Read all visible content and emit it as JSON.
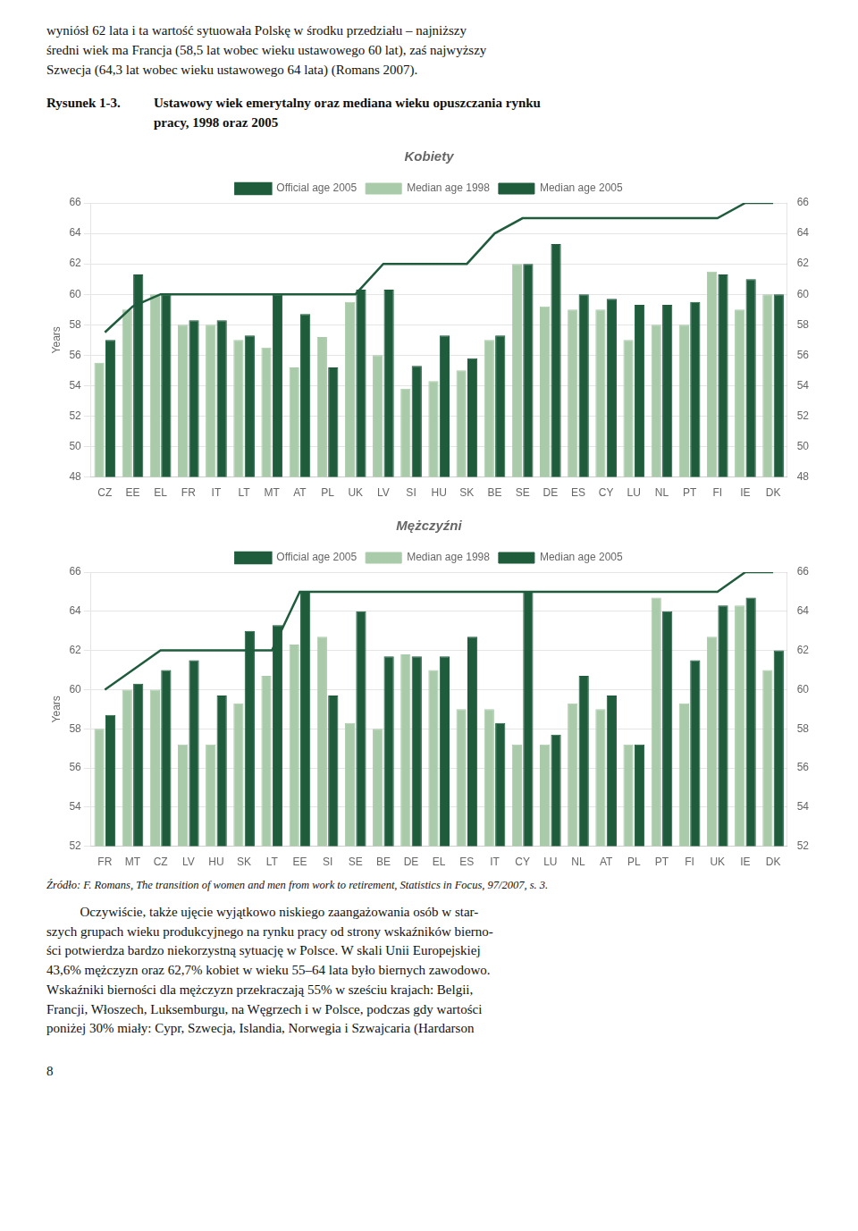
{
  "top_text": [
    "wyniósł 62 lata i ta wartość sytuowała Polskę w środku przedziału – najniższy",
    "średni wiek ma Francja (58,5 lat wobec wieku ustawowego 60 lat), zaś najwyższy",
    "Szwecja (64,3 lat wobec wieku ustawowego 64 lata) (Romans 2007)."
  ],
  "figure_label": "Rysunek 1-3.",
  "figure_title": [
    "Ustawowy wiek emerytalny oraz mediana wieku opuszczania rynku",
    "pracy, 1998 oraz 2005"
  ],
  "chart_data": [
    {
      "type": "bar",
      "title": "Kobiety",
      "ylabel": "Years",
      "categories": [
        "CZ",
        "EE",
        "EL",
        "FR",
        "IT",
        "LT",
        "MT",
        "AT",
        "PL",
        "UK",
        "LV",
        "SI",
        "HU",
        "SK",
        "BE",
        "SE",
        "DE",
        "ES",
        "CY",
        "LU",
        "NL",
        "PT",
        "FI",
        "IE",
        "DK"
      ],
      "series": [
        {
          "name": "Median age 1998",
          "color": "#aacbaa",
          "values": [
            55.5,
            59.0,
            60.0,
            58.0,
            58.0,
            57.0,
            56.5,
            55.2,
            57.2,
            59.5,
            56.0,
            53.8,
            54.3,
            55.0,
            57.0,
            62.0,
            59.2,
            59.0,
            59.0,
            57.0,
            58.0,
            58.0,
            61.5,
            59.0,
            60.0
          ]
        },
        {
          "name": "Median age 2005",
          "color": "#1e5c3c",
          "values": [
            57.0,
            61.3,
            60.0,
            58.3,
            58.3,
            57.3,
            60.0,
            58.7,
            55.2,
            60.3,
            60.3,
            55.3,
            57.3,
            55.8,
            57.3,
            62.0,
            63.3,
            60.0,
            59.7,
            59.3,
            59.3,
            59.5,
            61.3,
            61.0,
            60.0
          ]
        },
        {
          "name": "Official age 2005",
          "type": "line",
          "color": "#1e5c3c",
          "values": [
            57.5,
            59.2,
            60.0,
            60.0,
            60.0,
            60.0,
            60.0,
            60.0,
            60.0,
            60.0,
            62.0,
            62.0,
            62.0,
            62.0,
            64.0,
            65.0,
            65.0,
            65.0,
            65.0,
            65.0,
            65.0,
            65.0,
            65.0,
            66.0,
            66.0
          ]
        }
      ],
      "ylim": [
        48,
        66
      ],
      "yticks": [
        48,
        50,
        52,
        54,
        56,
        58,
        60,
        62,
        64,
        66
      ],
      "y2lim": [
        48,
        66
      ],
      "y2ticks": [
        48,
        50,
        52,
        54,
        56,
        58,
        60,
        62,
        64,
        66
      ],
      "grid": true,
      "legend": "top"
    },
    {
      "type": "bar",
      "title": "Mężczyźni",
      "ylabel": "Years",
      "categories": [
        "FR",
        "MT",
        "CZ",
        "LV",
        "HU",
        "SK",
        "LT",
        "EE",
        "SI",
        "SE",
        "BE",
        "DE",
        "EL",
        "ES",
        "IT",
        "CY",
        "LU",
        "NL",
        "AT",
        "PL",
        "PT",
        "FI",
        "UK",
        "IE",
        "DK"
      ],
      "series": [
        {
          "name": "Median age 1998",
          "color": "#aacbaa",
          "values": [
            58.0,
            60.0,
            60.0,
            57.2,
            57.2,
            59.3,
            60.7,
            62.3,
            62.7,
            58.3,
            58.0,
            61.8,
            61.0,
            59.0,
            59.0,
            57.2,
            57.2,
            59.3,
            59.0,
            57.2,
            64.7,
            59.3,
            62.7,
            64.3,
            61.0
          ]
        },
        {
          "name": "Median age 2005",
          "color": "#1e5c3c",
          "values": [
            58.7,
            60.3,
            61.0,
            61.5,
            59.7,
            63.0,
            63.3,
            65.0,
            59.7,
            64.0,
            61.7,
            61.7,
            61.7,
            62.7,
            58.3,
            65.0,
            57.7,
            60.7,
            59.7,
            57.2,
            64.0,
            61.5,
            64.3,
            64.7,
            62.0
          ]
        },
        {
          "name": "Official age 2005",
          "type": "line",
          "color": "#1e5c3c",
          "values": [
            60.0,
            61.0,
            62.0,
            62.0,
            62.0,
            62.0,
            62.0,
            65.0,
            65.0,
            65.0,
            65.0,
            65.0,
            65.0,
            65.0,
            65.0,
            65.0,
            65.0,
            65.0,
            65.0,
            65.0,
            65.0,
            65.0,
            65.0,
            66.0,
            66.0
          ]
        }
      ],
      "ylim": [
        52,
        66
      ],
      "yticks": [
        52,
        54,
        56,
        58,
        60,
        62,
        64,
        66
      ],
      "y2lim": [
        52,
        66
      ],
      "y2ticks": [
        52,
        54,
        56,
        58,
        60,
        62,
        64,
        66
      ],
      "grid": true,
      "legend": "top"
    }
  ],
  "source": "Źródło: F. Romans, The transition of women and men from work to retirement, Statistics in Focus, 97/2007, s. 3.",
  "body_text": [
    "Oczywiście, także ujęcie wyjątkowo niskiego zaangażowania osób w star-",
    "szych grupach wieku produkcyjnego na rynku pracy od strony wskaźników bierno-",
    "ści potwierdza bardzo niekorzystną sytuację w Polsce. W skali Unii Europejskiej",
    "43,6% mężczyzn oraz 62,7% kobiet w wieku 55–64 lata było biernych zawodowo.",
    "Wskaźniki bierności dla mężczyzn przekraczają 55% w sześciu krajach: Belgii,",
    "Francji, Włoszech, Luksemburgu, na Węgrzech i w Polsce, podczas gdy wartości",
    "poniżej 30% miały: Cypr, Szwecja, Islandia, Norwegia i Szwajcaria (Hardarson"
  ],
  "page_number": "8"
}
